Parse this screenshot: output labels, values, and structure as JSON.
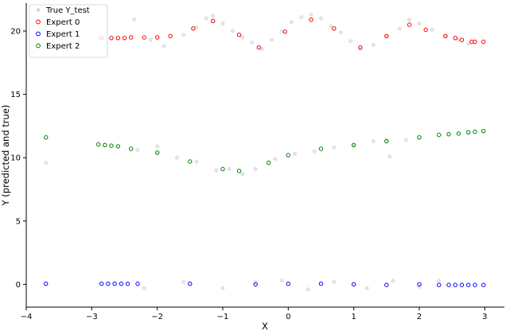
{
  "chart_data": {
    "type": "scatter",
    "xlabel": "X",
    "ylabel": "Y (predicted and true)",
    "xlim": [
      -4,
      3.3
    ],
    "ylim": [
      -1.8,
      22.2
    ],
    "xticks": [
      -4,
      -3,
      -2,
      -1,
      0,
      1,
      2,
      3
    ],
    "yticks": [
      0,
      5,
      10,
      15,
      20
    ],
    "grid": false,
    "legend_position": "top-left",
    "series": [
      {
        "name": "True Y_test",
        "color": "#b0b0b0",
        "fill": true,
        "opacity": 0.35,
        "points": [
          [
            -3.7,
            9.6
          ],
          [
            -2.35,
            20.9
          ],
          [
            -2.1,
            19.3
          ],
          [
            -1.9,
            18.8
          ],
          [
            -1.6,
            19.7
          ],
          [
            -1.4,
            20.3
          ],
          [
            -1.25,
            21.0
          ],
          [
            -1.15,
            21.2
          ],
          [
            -1.0,
            20.6
          ],
          [
            -0.85,
            20.0
          ],
          [
            -0.7,
            19.5
          ],
          [
            -0.55,
            19.1
          ],
          [
            -0.4,
            18.6
          ],
          [
            -0.25,
            19.3
          ],
          [
            -0.1,
            20.0
          ],
          [
            0.05,
            20.7
          ],
          [
            0.2,
            21.1
          ],
          [
            0.35,
            21.3
          ],
          [
            0.5,
            21.0
          ],
          [
            0.65,
            20.4
          ],
          [
            0.8,
            19.9
          ],
          [
            0.95,
            19.2
          ],
          [
            1.1,
            18.6
          ],
          [
            1.3,
            18.9
          ],
          [
            1.5,
            19.6
          ],
          [
            1.7,
            20.2
          ],
          [
            1.85,
            20.9
          ],
          [
            2.0,
            20.6
          ],
          [
            2.2,
            20.1
          ],
          [
            2.4,
            19.6
          ],
          [
            2.6,
            19.3
          ],
          [
            2.75,
            19.0
          ],
          [
            -2.3,
            10.6
          ],
          [
            -2.0,
            10.9
          ],
          [
            -1.7,
            10.0
          ],
          [
            -1.4,
            9.7
          ],
          [
            -1.1,
            9.0
          ],
          [
            -0.9,
            9.1
          ],
          [
            -0.7,
            8.7
          ],
          [
            -0.5,
            9.1
          ],
          [
            -0.2,
            9.9
          ],
          [
            0.1,
            10.3
          ],
          [
            0.4,
            10.5
          ],
          [
            0.7,
            10.8
          ],
          [
            1.0,
            11.0
          ],
          [
            1.3,
            11.3
          ],
          [
            1.5,
            11.4
          ],
          [
            1.55,
            10.1
          ],
          [
            1.8,
            11.4
          ],
          [
            -2.2,
            -0.3
          ],
          [
            -1.6,
            0.2
          ],
          [
            -1.0,
            -0.3
          ],
          [
            -0.5,
            0.2
          ],
          [
            -0.1,
            0.3
          ],
          [
            0.3,
            -0.4
          ],
          [
            0.7,
            0.2
          ],
          [
            1.2,
            -0.3
          ],
          [
            1.6,
            0.3
          ],
          [
            2.0,
            -0.2
          ],
          [
            2.3,
            0.3
          ]
        ]
      },
      {
        "name": "Expert 0",
        "color": "#ff0000",
        "fill": false,
        "points": [
          [
            -2.85,
            19.45
          ],
          [
            -2.7,
            19.45
          ],
          [
            -2.6,
            19.45
          ],
          [
            -2.5,
            19.45
          ],
          [
            -2.4,
            19.5
          ],
          [
            -2.2,
            19.5
          ],
          [
            -2.0,
            19.5
          ],
          [
            -1.8,
            19.6
          ],
          [
            -1.45,
            20.2
          ],
          [
            -1.15,
            20.8
          ],
          [
            -0.75,
            19.7
          ],
          [
            -0.45,
            18.7
          ],
          [
            -0.05,
            19.95
          ],
          [
            0.35,
            20.9
          ],
          [
            0.7,
            20.2
          ],
          [
            1.1,
            18.7
          ],
          [
            1.5,
            19.6
          ],
          [
            1.85,
            20.5
          ],
          [
            2.1,
            20.1
          ],
          [
            2.4,
            19.6
          ],
          [
            2.55,
            19.45
          ],
          [
            2.65,
            19.3
          ],
          [
            2.8,
            19.15
          ],
          [
            2.85,
            19.15
          ],
          [
            2.98,
            19.15
          ]
        ]
      },
      {
        "name": "Expert 1",
        "color": "#0000ff",
        "fill": false,
        "points": [
          [
            -3.7,
            0.05
          ],
          [
            -2.85,
            0.05
          ],
          [
            -2.75,
            0.05
          ],
          [
            -2.65,
            0.05
          ],
          [
            -2.55,
            0.05
          ],
          [
            -2.45,
            0.05
          ],
          [
            -2.3,
            0.05
          ],
          [
            -1.5,
            0.05
          ],
          [
            -0.5,
            0.0
          ],
          [
            0.0,
            0.05
          ],
          [
            0.5,
            0.05
          ],
          [
            1.0,
            0.0
          ],
          [
            1.5,
            -0.05
          ],
          [
            2.0,
            0.0
          ],
          [
            2.3,
            -0.05
          ],
          [
            2.45,
            -0.05
          ],
          [
            2.55,
            -0.05
          ],
          [
            2.65,
            -0.05
          ],
          [
            2.75,
            -0.05
          ],
          [
            2.85,
            -0.05
          ],
          [
            2.98,
            -0.05
          ]
        ]
      },
      {
        "name": "Expert 2",
        "color": "#008000",
        "fill": false,
        "points": [
          [
            -3.7,
            11.6
          ],
          [
            -2.9,
            11.05
          ],
          [
            -2.8,
            11.0
          ],
          [
            -2.7,
            10.95
          ],
          [
            -2.6,
            10.9
          ],
          [
            -2.4,
            10.7
          ],
          [
            -2.0,
            10.4
          ],
          [
            -1.5,
            9.7
          ],
          [
            -1.0,
            9.1
          ],
          [
            -0.75,
            8.95
          ],
          [
            -0.3,
            9.6
          ],
          [
            0.0,
            10.2
          ],
          [
            0.5,
            10.7
          ],
          [
            1.0,
            11.0
          ],
          [
            1.5,
            11.3
          ],
          [
            2.0,
            11.6
          ],
          [
            2.3,
            11.8
          ],
          [
            2.45,
            11.85
          ],
          [
            2.6,
            11.9
          ],
          [
            2.75,
            12.0
          ],
          [
            2.85,
            12.05
          ],
          [
            2.98,
            12.1
          ]
        ]
      }
    ]
  }
}
